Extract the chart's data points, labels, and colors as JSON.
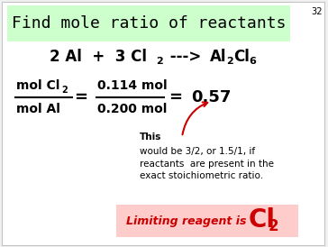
{
  "title": "Find mole ratio of reactants",
  "title_bg": "#ccffcc",
  "slide_bg": "#f0f0f0",
  "inner_bg": "#ffffff",
  "slide_number": "32",
  "text_color": "#000000",
  "arrow_color": "#cc0000",
  "limiting_bg": "#ffcccc",
  "limiting_color": "#cc0000",
  "note_body": "would be 3/2, or 1.5/1, if\nreactants  are present in the\nexact stoichiometric ratio."
}
